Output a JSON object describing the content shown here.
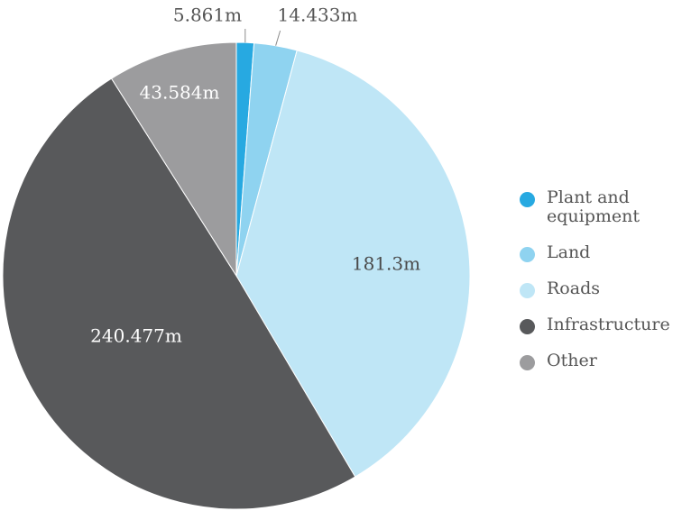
{
  "chart_data": {
    "type": "pie",
    "title": "",
    "unit": "m",
    "slices": [
      {
        "name": "Plant and equipment",
        "value": 5.861,
        "label": "5.861m",
        "color": "#27a9e1"
      },
      {
        "name": "Land",
        "value": 14.433,
        "label": "14.433m",
        "color": "#8fd3f0"
      },
      {
        "name": "Roads",
        "value": 181.3,
        "label": "181.3m",
        "color": "#bfe6f6"
      },
      {
        "name": "Infrastructure",
        "value": 240.477,
        "label": "240.477m",
        "color": "#58595b"
      },
      {
        "name": "Other",
        "value": 43.584,
        "label": "43.584m",
        "color": "#9c9c9e"
      }
    ],
    "legend_position": "right",
    "start_angle": "top, clockwise"
  },
  "legend": {
    "items": [
      {
        "label": "Plant and equipment",
        "color": "#27a9e1"
      },
      {
        "label": "Land",
        "color": "#8fd3f0"
      },
      {
        "label": "Roads",
        "color": "#bfe6f6"
      },
      {
        "label": "Infrastructure",
        "color": "#58595b"
      },
      {
        "label": "Other",
        "color": "#9c9c9e"
      }
    ]
  }
}
